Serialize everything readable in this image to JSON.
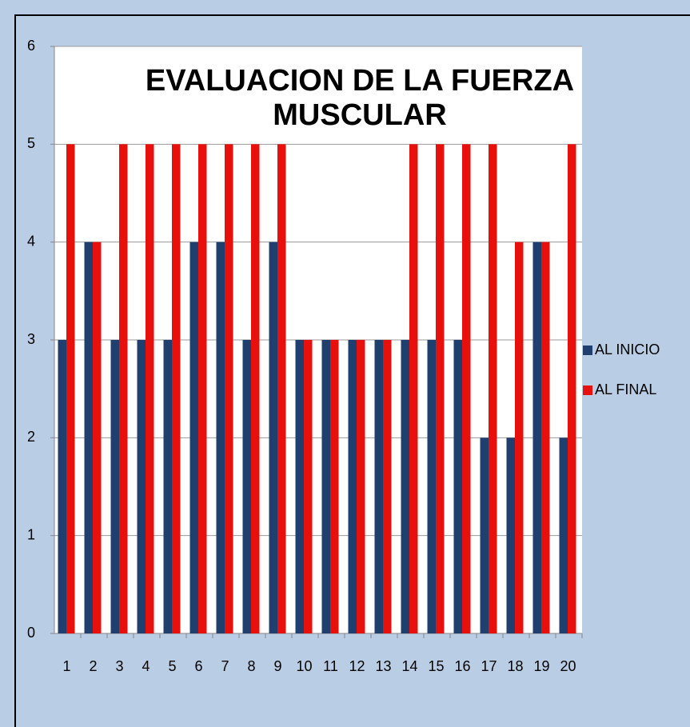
{
  "chart_data": {
    "type": "bar",
    "title": [
      "EVALUACION DE LA FUERZA",
      "MUSCULAR"
    ],
    "categories": [
      "1",
      "2",
      "3",
      "4",
      "5",
      "6",
      "7",
      "8",
      "9",
      "10",
      "11",
      "12",
      "13",
      "14",
      "15",
      "16",
      "17",
      "18",
      "19",
      "20"
    ],
    "series": [
      {
        "name": "AL INICIO",
        "color": "#1f3f6e",
        "values": [
          3,
          4,
          3,
          3,
          3,
          4,
          4,
          3,
          4,
          3,
          3,
          3,
          3,
          3,
          3,
          3,
          2,
          2,
          4,
          2
        ]
      },
      {
        "name": "AL FINAL",
        "color": "#e8100c",
        "values": [
          5,
          4,
          5,
          5,
          5,
          5,
          5,
          5,
          5,
          3,
          3,
          3,
          3,
          5,
          5,
          5,
          5,
          4,
          4,
          5
        ]
      }
    ],
    "ylim": [
      0,
      6
    ],
    "yticks": [
      0,
      1,
      2,
      3,
      4,
      5,
      6
    ],
    "grid": true,
    "legend": "right"
  }
}
